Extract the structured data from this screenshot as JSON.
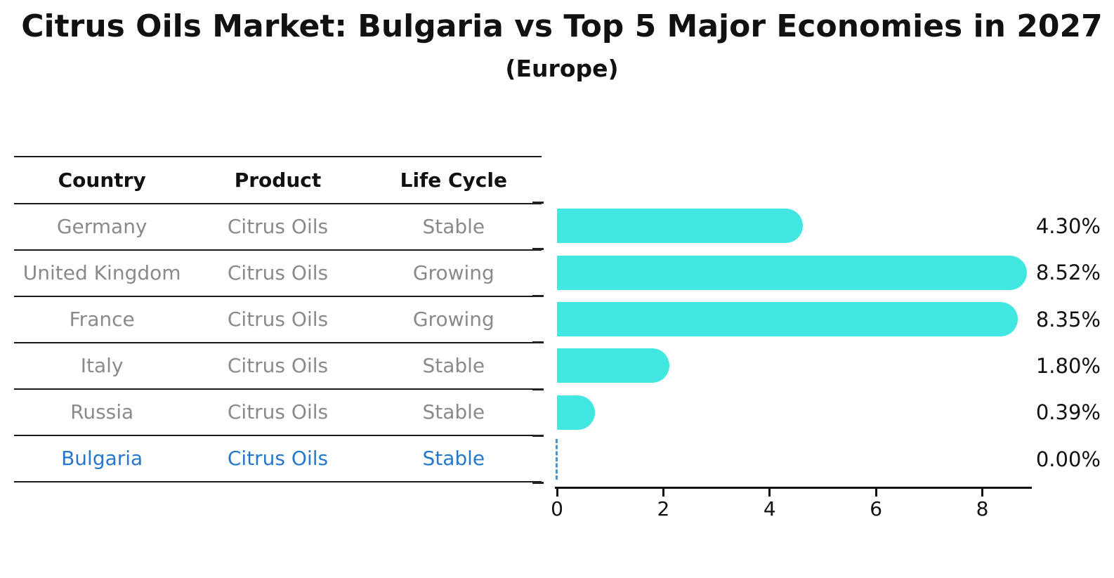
{
  "title": "Citrus Oils Market: Bulgaria vs Top 5 Major Economies in 2027",
  "subtitle": "(Europe)",
  "table": {
    "headers": [
      "Country",
      "Product",
      "Life Cycle"
    ],
    "rows": [
      {
        "country": "Germany",
        "product": "Citrus Oils",
        "life_cycle": "Stable",
        "highlight": false
      },
      {
        "country": "United Kingdom",
        "product": "Citrus Oils",
        "life_cycle": "Growing",
        "highlight": false
      },
      {
        "country": "France",
        "product": "Citrus Oils",
        "life_cycle": "Growing",
        "highlight": false
      },
      {
        "country": "Italy",
        "product": "Citrus Oils",
        "life_cycle": "Stable",
        "highlight": false
      },
      {
        "country": "Russia",
        "product": "Citrus Oils",
        "life_cycle": "Stable",
        "highlight": true
      }
    ],
    "highlight_row": {
      "country": "Bulgaria",
      "product": "Citrus Oils",
      "life_cycle": "Stable"
    }
  },
  "chart_data": {
    "type": "bar",
    "orientation": "horizontal",
    "categories": [
      "Germany",
      "United Kingdom",
      "France",
      "Italy",
      "Russia",
      "Bulgaria"
    ],
    "values": [
      4.3,
      8.52,
      8.35,
      1.8,
      0.39,
      0.0
    ],
    "value_labels": [
      "4.30%",
      "8.52%",
      "8.35%",
      "1.80%",
      "0.39%",
      "0.00%"
    ],
    "x_ticks": [
      0,
      2,
      4,
      6,
      8
    ],
    "xlim": [
      0,
      9
    ],
    "grid": false,
    "legend": "none",
    "bar_color": "#42e7e1",
    "zero_marker_color": "#4596cf",
    "highlight_text_color": "#2578cb",
    "row_text_color": "#8a8a8a"
  }
}
